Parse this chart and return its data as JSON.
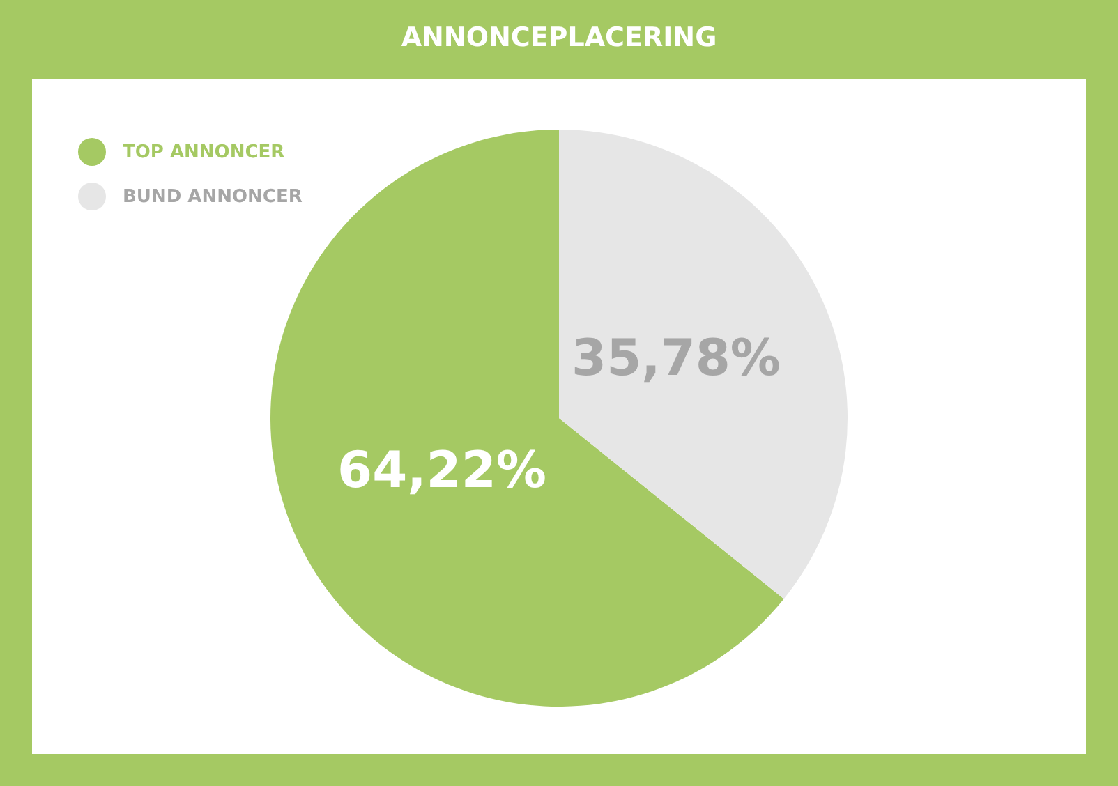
{
  "chart_data": {
    "type": "pie",
    "title": "ANNONCEPLACERING",
    "categories": [
      "TOP ANNONCER",
      "BUND ANNONCER"
    ],
    "values": [
      64.22,
      35.78
    ],
    "colors": [
      "#a5c963",
      "#e6e6e6"
    ],
    "value_labels": [
      "64,22%",
      "35,78%"
    ],
    "legend": "top left"
  }
}
